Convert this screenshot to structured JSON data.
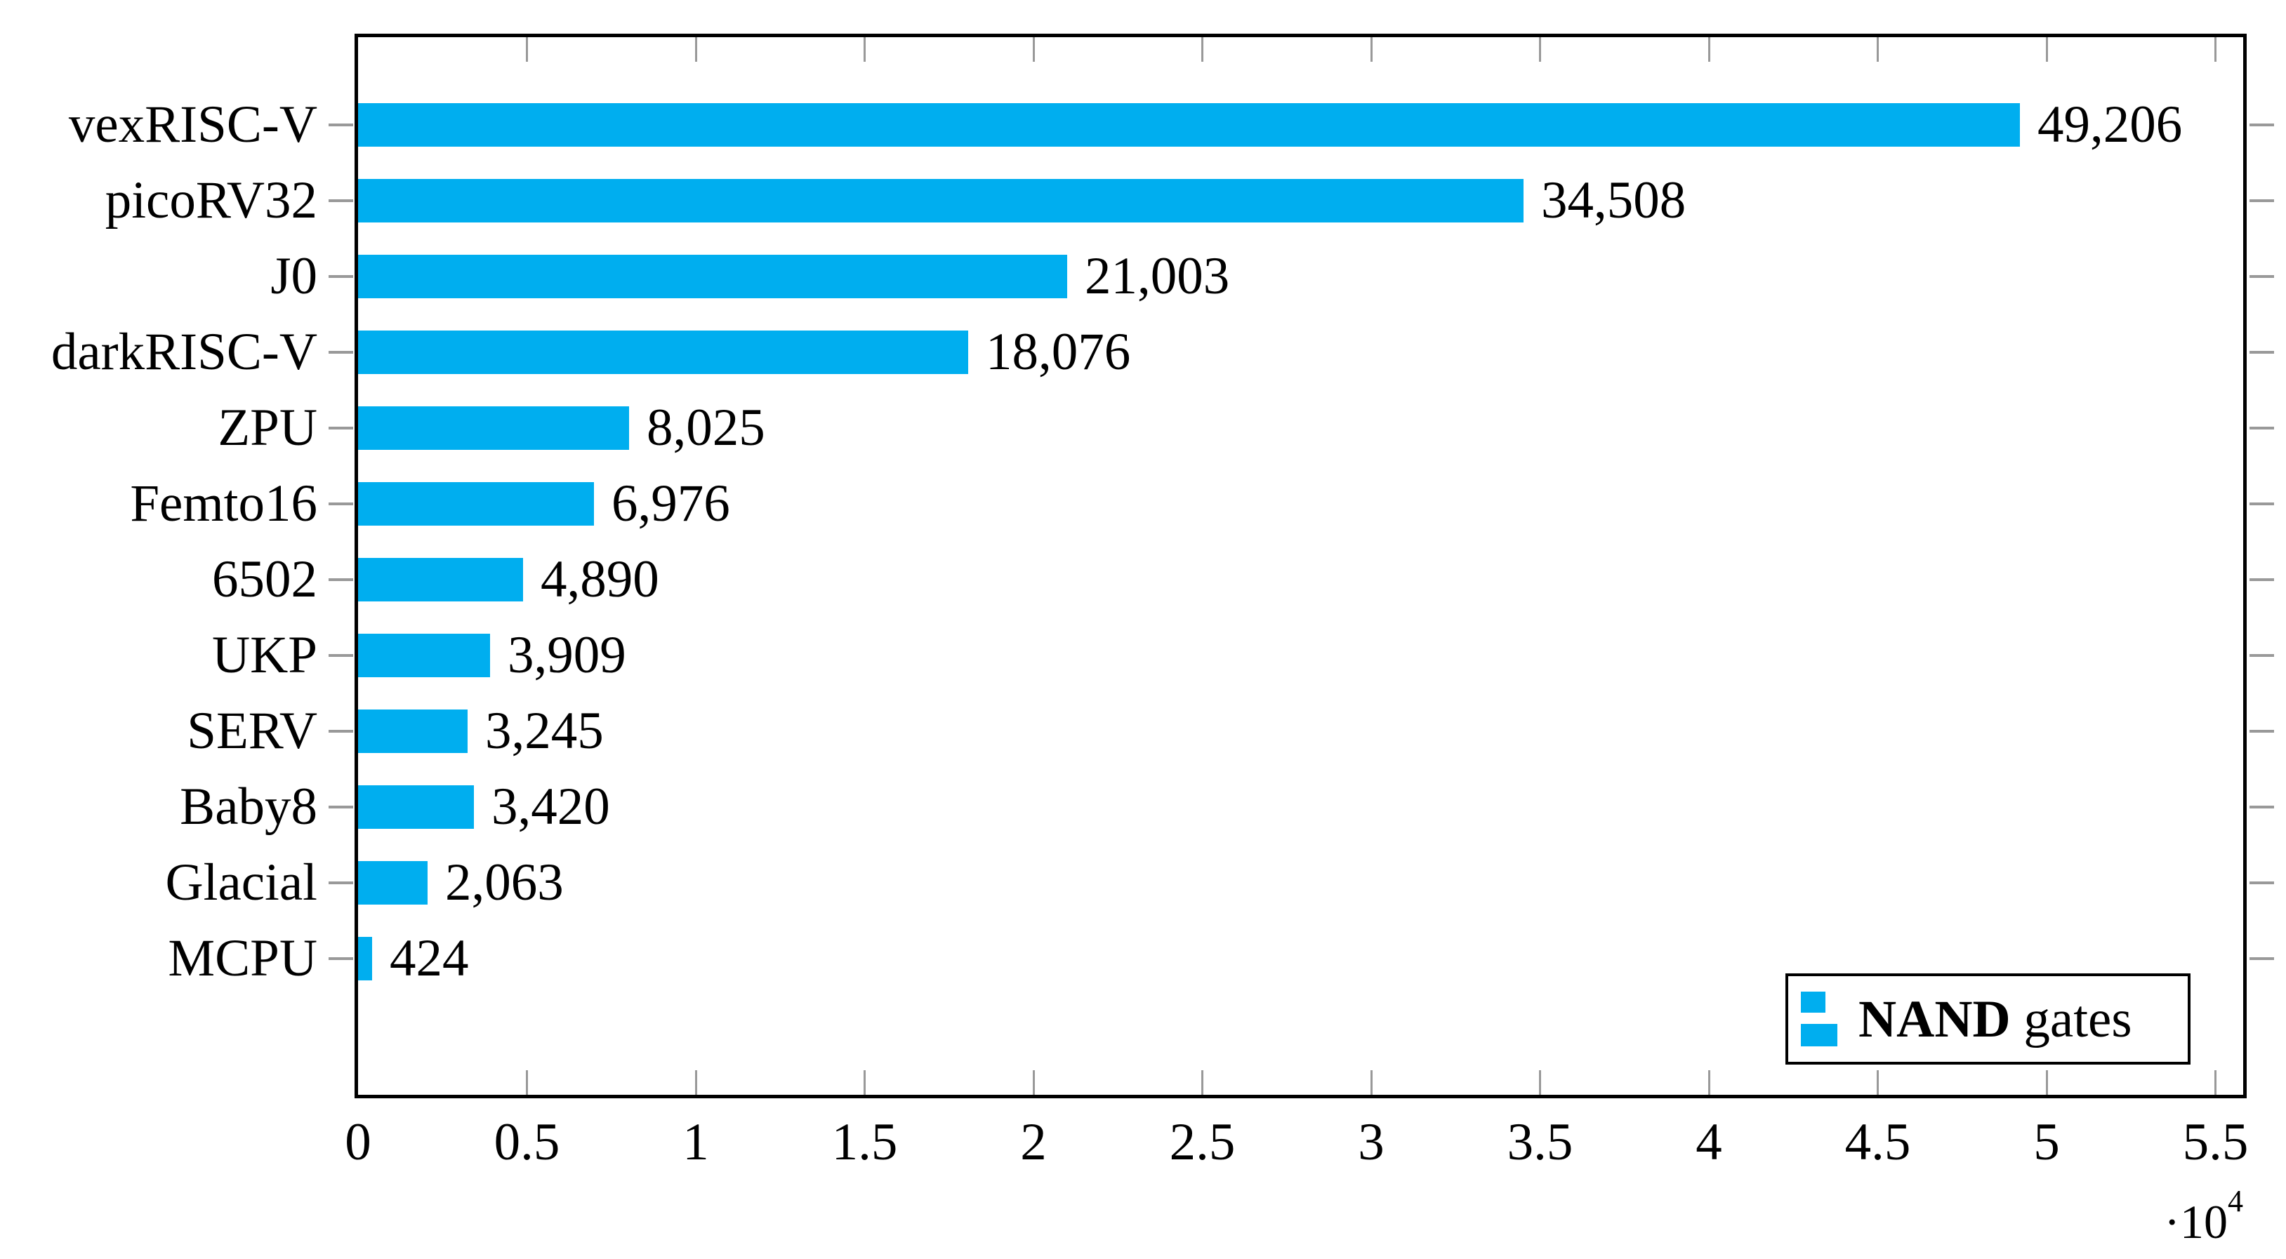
{
  "chart_data": {
    "type": "bar",
    "orientation": "horizontal",
    "categories": [
      "vexRISC-V",
      "picoRV32",
      "J0",
      "darkRISC-V",
      "ZPU",
      "Femto16",
      "6502",
      "UKP",
      "SERV",
      "Baby8",
      "Glacial",
      "MCPU"
    ],
    "values": [
      49206,
      34508,
      21003,
      18076,
      8025,
      6976,
      4890,
      3909,
      3245,
      3420,
      2063,
      424
    ],
    "value_labels": [
      "49,206",
      "34,508",
      "21,003",
      "18,076",
      "8,025",
      "6,976",
      "4,890",
      "3,909",
      "3,245",
      "3,420",
      "2,063",
      "424"
    ],
    "series": [
      {
        "name": "NAND gates",
        "values": [
          49206,
          34508,
          21003,
          18076,
          8025,
          6976,
          4890,
          3909,
          3245,
          3420,
          2063,
          424
        ]
      }
    ],
    "title": "",
    "xlabel": "",
    "ylabel": "",
    "xlim": [
      0,
      56000
    ],
    "grid": false,
    "legend_position": "lower right",
    "x_axis": {
      "ticks": [
        {
          "label": "0",
          "value": 0
        },
        {
          "label": "0.5",
          "value": 5000
        },
        {
          "label": "1",
          "value": 10000
        },
        {
          "label": "1.5",
          "value": 15000
        },
        {
          "label": "2",
          "value": 20000
        },
        {
          "label": "2.5",
          "value": 25000
        },
        {
          "label": "3",
          "value": 30000
        },
        {
          "label": "3.5",
          "value": 35000
        },
        {
          "label": "4",
          "value": 40000
        },
        {
          "label": "4.5",
          "value": 45000
        },
        {
          "label": "5",
          "value": 50000
        },
        {
          "label": "5.5",
          "value": 55000
        }
      ],
      "multiplier_base": "·10",
      "multiplier_exp": "4"
    },
    "colors": {
      "bar": "#00AEEF",
      "axis": "#000000",
      "tick_mark": "#999999",
      "text": "#000000"
    }
  },
  "legend": {
    "series_bold": "NAND",
    "series_rest": " gates"
  }
}
